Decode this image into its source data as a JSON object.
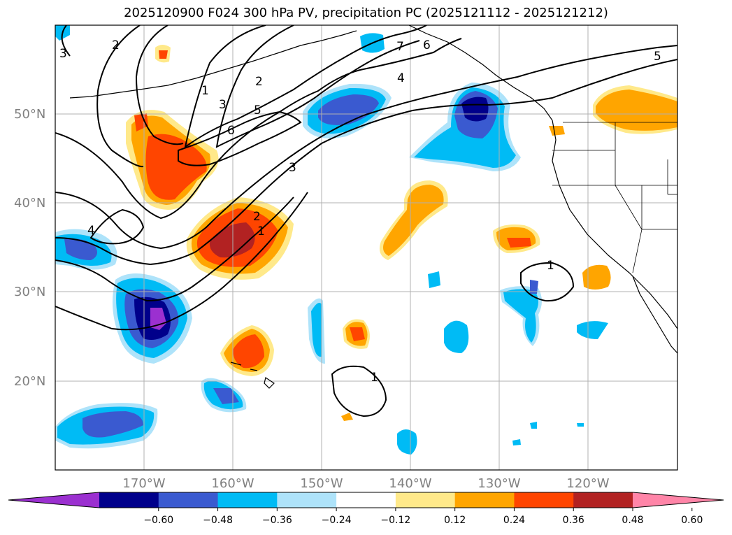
{
  "title": "2025120900 F024 300 hPa PV, precipitation PC (2025121112 - 2025121212)",
  "lat_labels": [
    "50°N",
    "40°N",
    "30°N",
    "20°N"
  ],
  "lon_labels": [
    "170°W",
    "160°W",
    "150°W",
    "140°W",
    "130°W",
    "120°W"
  ],
  "colorbar": {
    "ticks": [
      "−0.60",
      "−0.48",
      "−0.36",
      "−0.24",
      "−0.12",
      "0.12",
      "0.24",
      "0.36",
      "0.48",
      "0.60"
    ],
    "colors": [
      "#9b30d0",
      "#00008b",
      "#3a5ad0",
      "#00bbf5",
      "#aee3fa",
      "#ffffff",
      "#ffe98a",
      "#ffa500",
      "#ff4500",
      "#b22222",
      "#ff85a8"
    ]
  },
  "pv_labels": [
    "3",
    "2",
    "1",
    "2",
    "3",
    "5",
    "6",
    "7",
    "6",
    "4",
    "3",
    "4",
    "2",
    "1",
    "1",
    "1",
    "5"
  ]
}
